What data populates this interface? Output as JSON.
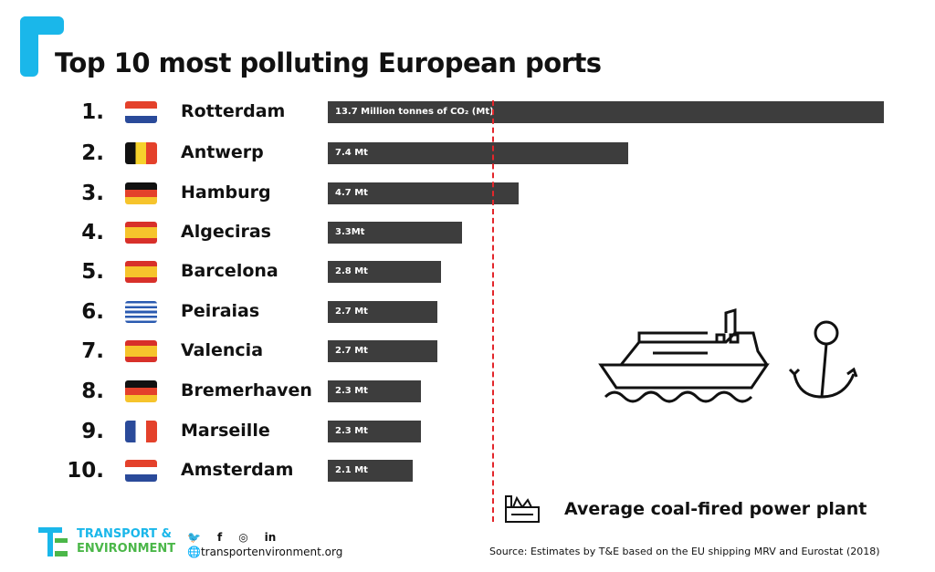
{
  "header": {
    "title": "Top 10 most polluting European ports"
  },
  "chart_data": {
    "type": "bar",
    "title": "Top 10 most polluting European ports",
    "unit_label": "Million tonnes of CO2 (Mt)",
    "categories": [
      "Rotterdam",
      "Antwerp",
      "Hamburg",
      "Algeciras",
      "Barcelona",
      "Peiraias",
      "Valencia",
      "Bremerhaven",
      "Marseille",
      "Amsterdam"
    ],
    "ranks": [
      "1.",
      "2.",
      "3.",
      "4.",
      "5.",
      "6.",
      "7.",
      "8.",
      "9.",
      "10."
    ],
    "flags": [
      "nl",
      "be",
      "de",
      "es",
      "es",
      "gr",
      "es",
      "de",
      "fr",
      "nl"
    ],
    "values": [
      13.7,
      7.4,
      4.7,
      3.3,
      2.8,
      2.7,
      2.7,
      2.3,
      2.3,
      2.1
    ],
    "labels": [
      "13.7 Million tonnes of CO₂ (Mt)",
      "7.4 Mt",
      "4.7 Mt",
      "3.3Mt",
      "2.8 Mt",
      "2.7 Mt",
      "2.7 Mt",
      "2.3 Mt",
      "2.3 Mt",
      "2.1 Mt"
    ],
    "reference_line": {
      "value": 4.05,
      "label": "Average coal-fired power plant",
      "color": "#e3262b"
    },
    "bar_color": "#3d3d3d",
    "xlim": [
      0,
      13.7
    ]
  },
  "footer": {
    "logo_line1": "TRANSPORT &",
    "logo_line2": "ENVIRONMENT",
    "website": "transportenvironment.org",
    "social": [
      "twitter",
      "facebook",
      "instagram",
      "linkedin"
    ],
    "source": "Source: Estimates by T&E based on the EU shipping MRV and Eurostat (2018)"
  }
}
